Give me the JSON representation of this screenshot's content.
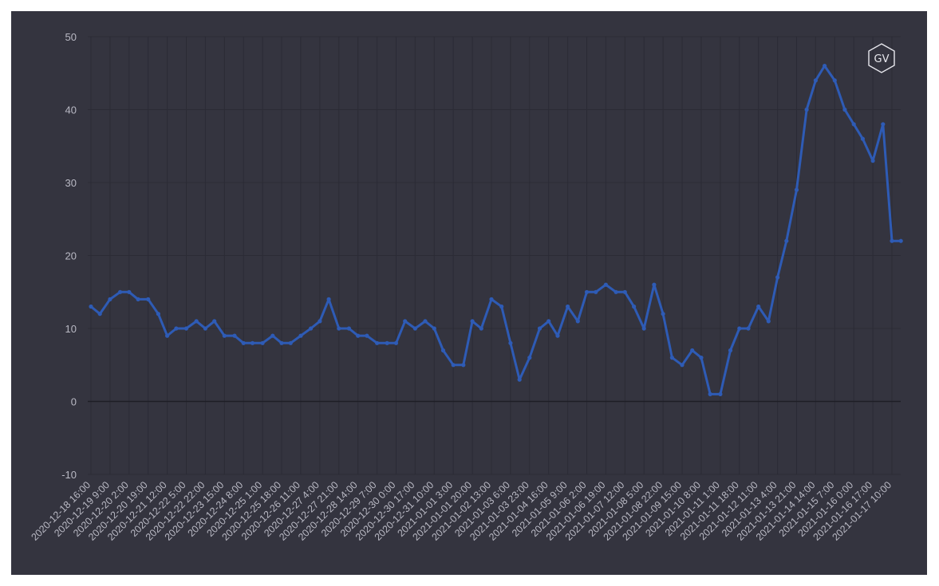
{
  "logo": {
    "text": "GV",
    "icon": "hexagon-logo-icon"
  },
  "colors": {
    "background": "#34343f",
    "grid": "#2b2b35",
    "zero_line": "#1e1e26",
    "series": "#2e5bb5",
    "text": "#b9b9c4"
  },
  "chart_data": {
    "type": "line",
    "title": "",
    "xlabel": "",
    "ylabel": "",
    "ylim": [
      -10,
      50
    ],
    "yticks": [
      "50",
      "40",
      "30",
      "20",
      "10",
      "0",
      "-10"
    ],
    "grid": true,
    "xtick_labels": [
      "2020-12-18 16:00",
      "2020-12-19 9:00",
      "2020-12-20 2:00",
      "2020-12-20 19:00",
      "2020-12-21 12:00",
      "2020-12-22 5:00",
      "2020-12-22 22:00",
      "2020-12-23 15:00",
      "2020-12-24 8:00",
      "2020-12-25 1:00",
      "2020-12-25 18:00",
      "2020-12-26 11:00",
      "2020-12-27 4:00",
      "2020-12-27 21:00",
      "2020-12-28 14:00",
      "2020-12-29 7:00",
      "2020-12-30 0:00",
      "2020-12-30 17:00",
      "2020-12-31 10:00",
      "2021-01-01 3:00",
      "2021-01-01 20:00",
      "2021-01-02 13:00",
      "2021-01-03 6:00",
      "2021-01-03 23:00",
      "2021-01-04 16:00",
      "2021-01-05 9:00",
      "2021-01-06 2:00",
      "2021-01-06 19:00",
      "2021-01-07 12:00",
      "2021-01-08 5:00",
      "2021-01-08 22:00",
      "2021-01-09 15:00",
      "2021-01-10 8:00",
      "2021-01-11 1:00",
      "2021-01-11 18:00",
      "2021-01-12 11:00",
      "2021-01-13 4:00",
      "2021-01-13 21:00",
      "2021-01-14 14:00",
      "2021-01-15 7:00",
      "2021-01-16 0:00",
      "2021-01-16 17:00",
      "2021-01-17 10:00"
    ],
    "series": [
      {
        "x": [
          "2020-12-18 16:00",
          "2020-12-19 0:00",
          "2020-12-19 9:00",
          "2020-12-19 18:00",
          "2020-12-20 2:00",
          "2020-12-20 10:00",
          "2020-12-20 19:00",
          "2020-12-21 4:00",
          "2020-12-21 12:00",
          "2020-12-21 20:00",
          "2020-12-22 5:00",
          "2020-12-22 14:00",
          "2020-12-22 22:00",
          "2020-12-23 6:00",
          "2020-12-23 15:00",
          "2020-12-24 0:00",
          "2020-12-24 8:00",
          "2020-12-24 16:00",
          "2020-12-25 1:00",
          "2020-12-25 10:00",
          "2020-12-25 18:00",
          "2020-12-26 2:00",
          "2020-12-26 11:00",
          "2020-12-26 20:00",
          "2020-12-27 4:00",
          "2020-12-27 12:00",
          "2020-12-27 21:00",
          "2020-12-28 6:00",
          "2020-12-28 14:00",
          "2020-12-28 22:00",
          "2020-12-29 7:00",
          "2020-12-29 16:00",
          "2020-12-30 0:00",
          "2020-12-30 8:00",
          "2020-12-30 17:00",
          "2020-12-31 2:00",
          "2020-12-31 10:00",
          "2020-12-31 18:00",
          "2021-01-01 3:00",
          "2021-01-01 12:00",
          "2021-01-01 20:00",
          "2021-01-02 4:00",
          "2021-01-02 13:00",
          "2021-01-02 22:00",
          "2021-01-03 6:00",
          "2021-01-03 14:00",
          "2021-01-03 23:00",
          "2021-01-04 8:00",
          "2021-01-04 16:00",
          "2021-01-05 0:00",
          "2021-01-05 9:00",
          "2021-01-05 18:00",
          "2021-01-06 2:00",
          "2021-01-06 10:00",
          "2021-01-06 19:00",
          "2021-01-07 4:00",
          "2021-01-07 12:00",
          "2021-01-07 20:00",
          "2021-01-08 5:00",
          "2021-01-08 14:00",
          "2021-01-08 22:00",
          "2021-01-09 6:00",
          "2021-01-09 15:00",
          "2021-01-10 0:00",
          "2021-01-10 8:00",
          "2021-01-10 16:00",
          "2021-01-11 1:00",
          "2021-01-11 10:00",
          "2021-01-11 18:00",
          "2021-01-12 2:00",
          "2021-01-12 11:00",
          "2021-01-12 20:00",
          "2021-01-13 4:00",
          "2021-01-13 12:00",
          "2021-01-13 21:00",
          "2021-01-14 6:00",
          "2021-01-14 14:00",
          "2021-01-14 22:00",
          "2021-01-15 7:00",
          "2021-01-15 16:00",
          "2021-01-16 0:00",
          "2021-01-16 8:00",
          "2021-01-16 17:00",
          "2021-01-17 2:00",
          "2021-01-17 10:00",
          "2021-01-17 18:00"
        ],
        "values": [
          13,
          12,
          14,
          15,
          15,
          14,
          14,
          12,
          9,
          10,
          10,
          11,
          10,
          11,
          9,
          9,
          8,
          8,
          8,
          9,
          8,
          8,
          9,
          10,
          11,
          14,
          10,
          10,
          9,
          9,
          8,
          8,
          8,
          11,
          10,
          11,
          10,
          7,
          5,
          5,
          11,
          10,
          14,
          13,
          8,
          3,
          6,
          10,
          11,
          9,
          13,
          11,
          15,
          15,
          16,
          15,
          15,
          13,
          10,
          16,
          12,
          6,
          5,
          7,
          6,
          1,
          1,
          7,
          10,
          10,
          13,
          11,
          17,
          22,
          29,
          40,
          44,
          46,
          44,
          40,
          38,
          36,
          33,
          38,
          22,
          22
        ]
      }
    ]
  }
}
